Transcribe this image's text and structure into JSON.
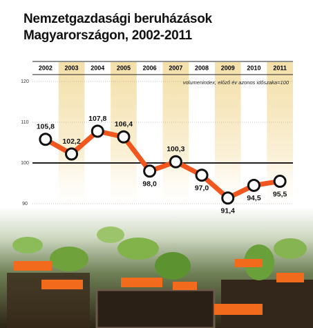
{
  "chart_data": {
    "type": "line",
    "title": "Nemzetgazdasági beruházások Magyarországon, 2002-2011",
    "annotation": "volumenindex, előző év azonos időszaka=100",
    "categories": [
      "2002",
      "2003",
      "2004",
      "2005",
      "2006",
      "2007",
      "2008",
      "2009",
      "2010",
      "2011"
    ],
    "values": [
      105.8,
      102.2,
      107.8,
      106.4,
      98.0,
      100.3,
      97.0,
      91.4,
      94.5,
      95.5
    ],
    "value_labels": [
      "105,8",
      "102,2",
      "107,8",
      "106,4",
      "98,0",
      "100,3",
      "97,0",
      "91,4",
      "94,5",
      "95,5"
    ],
    "color": "#f0561d",
    "ylim": [
      90,
      120
    ],
    "yticks": [
      90,
      100,
      110,
      120
    ],
    "reference_line": 100,
    "grid": true
  }
}
